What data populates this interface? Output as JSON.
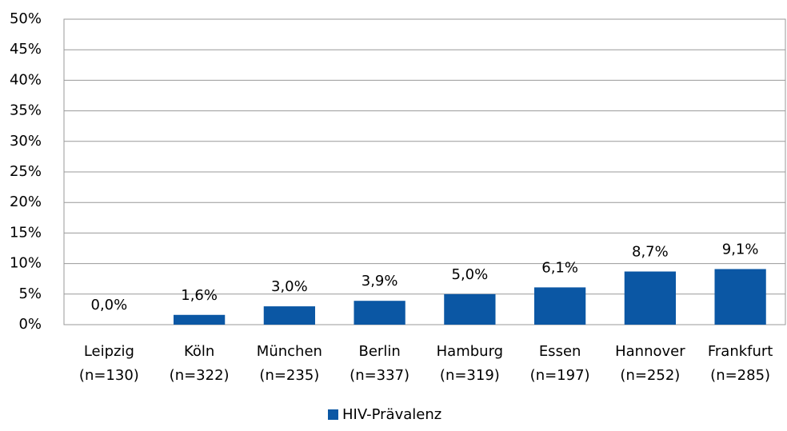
{
  "chart_data": {
    "type": "bar",
    "categories": [
      "Leipzig (n=130)",
      "Köln (n=322)",
      "München (n=235)",
      "Berlin (n=337)",
      "Hamburg (n=319)",
      "Essen (n=197)",
      "Hannover (n=252)",
      "Frankfurt (n=285)"
    ],
    "series": [
      {
        "name": "HIV-Prävalenz",
        "color": "#0b57a4",
        "values": [
          0.0,
          1.6,
          3.0,
          3.9,
          5.0,
          6.1,
          8.7,
          9.1
        ],
        "value_labels": [
          "0,0%",
          "1,6%",
          "3,0%",
          "3,9%",
          "5,0%",
          "6,1%",
          "8,7%",
          "9,1%"
        ]
      }
    ],
    "ylim": [
      0,
      50
    ],
    "yticks": [
      {
        "value": 0,
        "label": "0%"
      },
      {
        "value": 5,
        "label": "5%"
      },
      {
        "value": 10,
        "label": "10%"
      },
      {
        "value": 15,
        "label": "15%"
      },
      {
        "value": 20,
        "label": "20%"
      },
      {
        "value": 25,
        "label": "25%"
      },
      {
        "value": 30,
        "label": "30%"
      },
      {
        "value": 35,
        "label": "35%"
      },
      {
        "value": 40,
        "label": "40%"
      },
      {
        "value": 45,
        "label": "45%"
      },
      {
        "value": 50,
        "label": "50%"
      }
    ],
    "grid": true,
    "legend": "bottom"
  }
}
